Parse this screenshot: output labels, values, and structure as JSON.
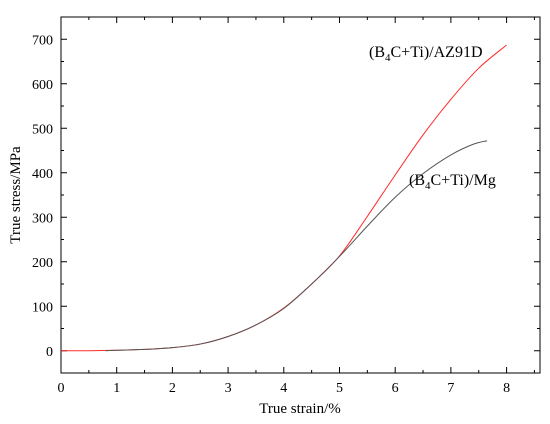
{
  "chart_data": {
    "type": "line",
    "title": "",
    "xlabel": "True strain/%",
    "ylabel": "True stress/MPa",
    "xlim": [
      0,
      8.6
    ],
    "ylim": [
      -50,
      750
    ],
    "xticks": [
      0,
      1,
      2,
      3,
      4,
      5,
      6,
      7,
      8
    ],
    "yticks": [
      0,
      100,
      200,
      300,
      400,
      500,
      600,
      700
    ],
    "grid": false,
    "series": [
      {
        "name": "(B4C+Ti)/AZ91D",
        "label_parts": [
          "(B",
          "4",
          "C+Ti)/AZ91D"
        ],
        "color": "#ff2a2a",
        "x": [
          0,
          0.5,
          1,
          1.5,
          2,
          2.5,
          3,
          3.5,
          4,
          4.5,
          5,
          5.5,
          6,
          6.5,
          7,
          7.5,
          8
        ],
        "y": [
          0,
          0,
          1,
          3,
          7,
          15,
          32,
          58,
          96,
          150,
          213,
          302,
          395,
          485,
          565,
          635,
          687
        ]
      },
      {
        "name": "(B4C+Ti)/Mg",
        "label_parts": [
          "(B",
          "4",
          "C+Ti)/Mg"
        ],
        "color": "#555555",
        "x": [
          0.8,
          1,
          1.5,
          2,
          2.5,
          3,
          3.5,
          4,
          4.5,
          5,
          5.5,
          6,
          6.5,
          7,
          7.4,
          7.65
        ],
        "y": [
          0,
          1,
          3,
          7,
          15,
          32,
          58,
          95,
          150,
          212,
          280,
          345,
          398,
          440,
          464,
          472
        ]
      }
    ]
  }
}
